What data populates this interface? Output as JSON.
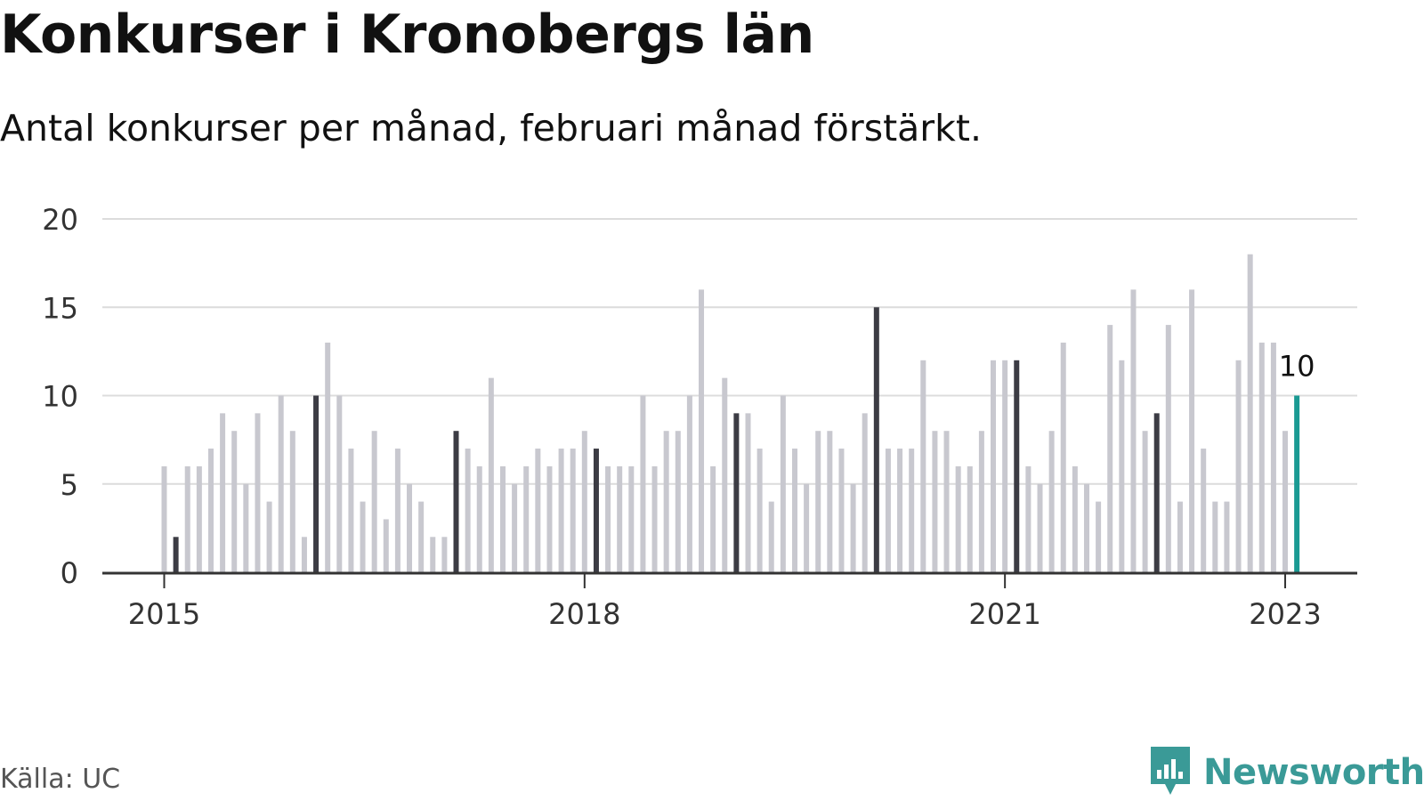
{
  "title": "Konkurser i Kronobergs län",
  "subtitle": "Antal konkurser per månad, februari månad förstärkt.",
  "source": "Källa: UC",
  "brand": {
    "name": "Newsworthy",
    "icon": "newsworthy-logo-icon",
    "color": "#3a9a97"
  },
  "colors": {
    "regular": "#c8c8cf",
    "february": "#3c3c44",
    "latest": "#1a9a93",
    "grid": "#dcdcdc",
    "axis": "#333333"
  },
  "chart_data": {
    "type": "bar",
    "start": "2015-01",
    "end": "2023-02",
    "values": [
      6,
      2,
      6,
      6,
      7,
      9,
      8,
      5,
      9,
      4,
      10,
      8,
      2,
      10,
      13,
      10,
      7,
      4,
      8,
      3,
      7,
      5,
      4,
      2,
      2,
      8,
      7,
      6,
      11,
      6,
      5,
      6,
      7,
      6,
      7,
      7,
      8,
      7,
      6,
      6,
      6,
      10,
      6,
      8,
      8,
      10,
      16,
      6,
      11,
      9,
      9,
      7,
      4,
      10,
      7,
      5,
      8,
      8,
      7,
      5,
      9,
      15,
      7,
      7,
      7,
      12,
      8,
      8,
      6,
      6,
      8,
      12,
      12,
      12,
      6,
      5,
      8,
      13,
      6,
      5,
      4,
      14,
      12,
      16,
      8,
      9,
      14,
      4,
      16,
      7,
      4,
      4,
      12,
      18,
      13,
      13,
      8,
      10
    ],
    "highlight": "February of each year",
    "last_value_label": "10",
    "ylim": [
      0,
      20
    ],
    "yticks": [
      "0",
      "5",
      "10",
      "15",
      "20"
    ],
    "xticks": [
      "2015",
      "2018",
      "2021",
      "2023"
    ],
    "grid": true
  }
}
